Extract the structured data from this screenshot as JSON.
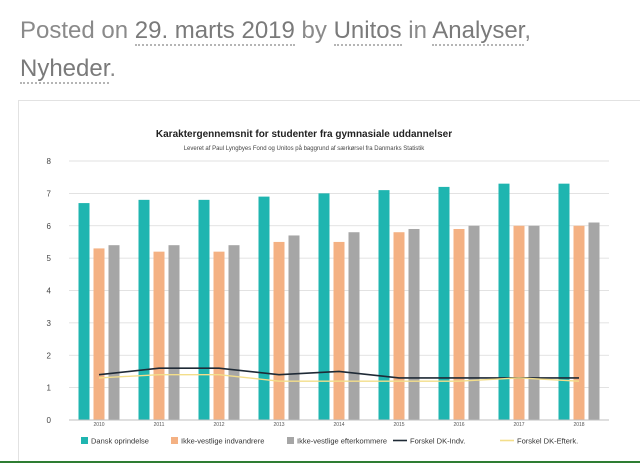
{
  "post_meta": {
    "posted_on_label": "Posted on",
    "date": "29. marts 2019",
    "by_label": "by",
    "author": "Unitos",
    "in_label": "in",
    "category_1": "Analyser",
    "separator": ",",
    "category_2": "Nyheder",
    "end": "."
  },
  "colors": {
    "dansk": "#1fb5b0",
    "ikke_indv": "#f4b183",
    "ikke_efterk": "#a6a6a6",
    "forskel_indv": "#1f2a36",
    "forskel_efterk": "#f3de8a"
  },
  "chart_data": {
    "type": "bar",
    "title": "Karaktergennemsnit for studenter fra gymnasiale uddannelser",
    "subtitle": "Leveret af Paul Lyngbyes Fond og Unitos på baggrund af særkørsel fra Danmarks Statistik",
    "categories": [
      "2010",
      "2011",
      "2012",
      "2013",
      "2014",
      "2015",
      "2016",
      "2017",
      "2018"
    ],
    "ylim": [
      0,
      8
    ],
    "yticks": [
      "0",
      "1",
      "2",
      "3",
      "4",
      "5",
      "6",
      "7",
      "8"
    ],
    "legend_position": "bottom",
    "series": [
      {
        "name": "Dansk oprindelse",
        "kind": "bar",
        "color_key": "dansk",
        "values": [
          6.7,
          6.8,
          6.8,
          6.9,
          7.0,
          7.1,
          7.2,
          7.3,
          7.3
        ]
      },
      {
        "name": "Ikke-vestlige indvandrere",
        "kind": "bar",
        "color_key": "ikke_indv",
        "values": [
          5.3,
          5.2,
          5.2,
          5.5,
          5.5,
          5.8,
          5.9,
          6.0,
          6.0
        ]
      },
      {
        "name": "Ikke-vestlige efterkommere",
        "kind": "bar",
        "color_key": "ikke_efterk",
        "values": [
          5.4,
          5.4,
          5.4,
          5.7,
          5.8,
          5.9,
          6.0,
          6.0,
          6.1
        ]
      },
      {
        "name": "Forskel DK-Indv.",
        "kind": "line",
        "color_key": "forskel_indv",
        "values": [
          1.4,
          1.6,
          1.6,
          1.4,
          1.5,
          1.3,
          1.3,
          1.3,
          1.3
        ]
      },
      {
        "name": "Forskel DK-Efterk.",
        "kind": "line",
        "color_key": "forskel_efterk",
        "values": [
          1.3,
          1.4,
          1.4,
          1.2,
          1.2,
          1.2,
          1.2,
          1.3,
          1.2
        ]
      }
    ]
  }
}
